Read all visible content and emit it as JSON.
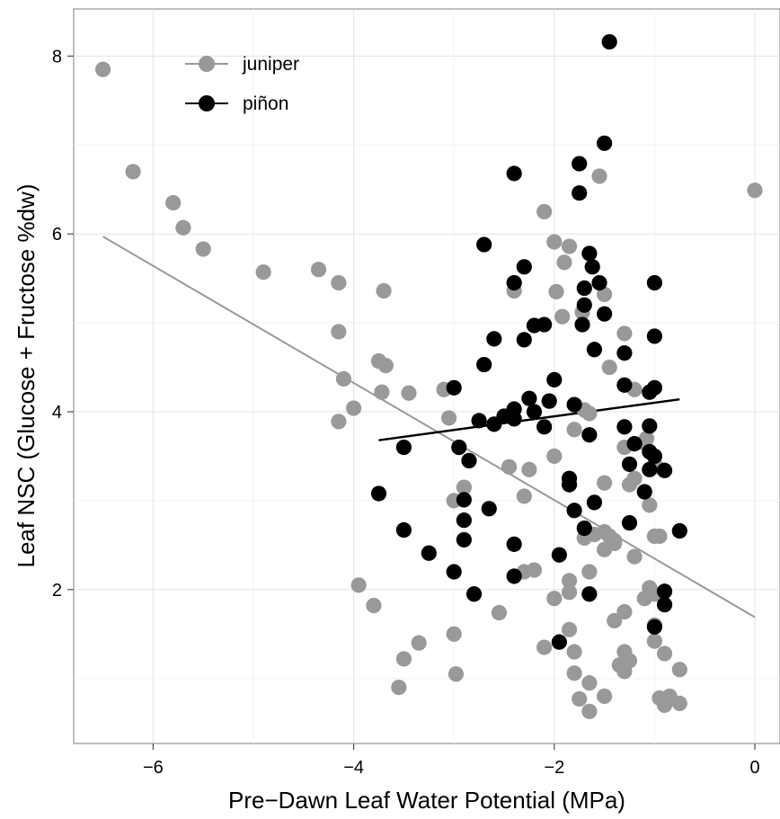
{
  "chart_data": {
    "type": "scatter",
    "title": "",
    "xlabel": "Pre−Dawn Leaf Water Potential (MPa)",
    "ylabel": "Leaf NSC (Glucose + Fructose %dw)",
    "xlim": [
      -6.8,
      0.3
    ],
    "ylim": [
      0.3,
      8.6
    ],
    "x_ticks": [
      -6,
      -4,
      -2,
      0
    ],
    "x_tick_labels": [
      "−6",
      "−4",
      "−2",
      "0"
    ],
    "y_ticks": [
      2,
      4,
      6,
      8
    ],
    "y_tick_labels": [
      "2",
      "4",
      "6",
      "8"
    ],
    "grid": true,
    "legend_position": "top-left",
    "series": [
      {
        "name": "juniper",
        "color": "#999999",
        "points": [
          [
            -6.5,
            7.85
          ],
          [
            -6.2,
            6.7
          ],
          [
            -5.8,
            6.35
          ],
          [
            -5.7,
            6.07
          ],
          [
            -5.5,
            5.83
          ],
          [
            -4.9,
            5.57
          ],
          [
            -4.35,
            5.6
          ],
          [
            -4.15,
            5.45
          ],
          [
            -3.7,
            5.36
          ],
          [
            -4.15,
            4.9
          ],
          [
            -3.75,
            4.57
          ],
          [
            -3.68,
            4.52
          ],
          [
            -4.1,
            4.37
          ],
          [
            -3.72,
            4.22
          ],
          [
            -3.45,
            4.21
          ],
          [
            -3.1,
            4.25
          ],
          [
            -4.0,
            4.04
          ],
          [
            -4.15,
            3.89
          ],
          [
            -3.05,
            3.93
          ],
          [
            -2.95,
            3.6
          ],
          [
            -2.85,
            3.45
          ],
          [
            -2.45,
            3.38
          ],
          [
            -2.25,
            3.35
          ],
          [
            -2.9,
            3.15
          ],
          [
            -3.0,
            3.0
          ],
          [
            -2.3,
            3.05
          ],
          [
            -3.95,
            2.05
          ],
          [
            -3.8,
            1.82
          ],
          [
            -3.35,
            1.4
          ],
          [
            -3.5,
            1.22
          ],
          [
            -3.55,
            0.9
          ],
          [
            -3.0,
            1.5
          ],
          [
            -2.98,
            1.05
          ],
          [
            -2.55,
            1.74
          ],
          [
            -2.3,
            2.2
          ],
          [
            -2.2,
            2.22
          ],
          [
            -2.1,
            1.35
          ],
          [
            -2.0,
            1.9
          ],
          [
            -2.1,
            6.25
          ],
          [
            -2.0,
            5.91
          ],
          [
            -1.85,
            5.86
          ],
          [
            -1.9,
            5.68
          ],
          [
            -1.98,
            5.35
          ],
          [
            -1.92,
            5.07
          ],
          [
            -1.55,
            6.65
          ],
          [
            -1.5,
            5.32
          ],
          [
            -1.72,
            5.12
          ],
          [
            -2.4,
            5.36
          ],
          [
            -1.45,
            4.5
          ],
          [
            -1.3,
            4.88
          ],
          [
            -1.2,
            4.25
          ],
          [
            -1.7,
            4.02
          ],
          [
            -1.65,
            3.98
          ],
          [
            -1.8,
            3.8
          ],
          [
            -2.0,
            3.5
          ],
          [
            -1.3,
            3.6
          ],
          [
            -1.2,
            3.25
          ],
          [
            -1.1,
            3.65
          ],
          [
            -1.08,
            3.7
          ],
          [
            -1.0,
            3.4
          ],
          [
            -0.98,
            3.38
          ],
          [
            -1.5,
            3.2
          ],
          [
            -1.25,
            3.18
          ],
          [
            -1.05,
            2.95
          ],
          [
            -1.5,
            2.65
          ],
          [
            -1.45,
            2.6
          ],
          [
            -1.4,
            2.55
          ],
          [
            -1.6,
            2.62
          ],
          [
            -1.5,
            2.45
          ],
          [
            -1.7,
            2.58
          ],
          [
            -1.4,
            2.52
          ],
          [
            -1.2,
            2.37
          ],
          [
            -1.0,
            2.6
          ],
          [
            -0.95,
            2.6
          ],
          [
            -1.85,
            2.1
          ],
          [
            -1.65,
            2.2
          ],
          [
            -1.05,
            2.02
          ],
          [
            -1.1,
            1.9
          ],
          [
            -1.0,
            1.95
          ],
          [
            -1.85,
            1.97
          ],
          [
            -1.0,
            1.6
          ],
          [
            -1.4,
            1.65
          ],
          [
            -1.3,
            1.75
          ],
          [
            -1.85,
            1.55
          ],
          [
            -1.8,
            1.3
          ],
          [
            -1.3,
            1.3
          ],
          [
            -1.25,
            1.2
          ],
          [
            -1.35,
            1.15
          ],
          [
            -1.3,
            1.08
          ],
          [
            -1.8,
            1.06
          ],
          [
            -1.65,
            0.95
          ],
          [
            -1.75,
            0.77
          ],
          [
            -1.65,
            0.63
          ],
          [
            -1.5,
            0.8
          ],
          [
            -1.0,
            1.42
          ],
          [
            -0.9,
            1.28
          ],
          [
            -0.75,
            1.1
          ],
          [
            -0.95,
            0.78
          ],
          [
            -0.85,
            0.8
          ],
          [
            -0.9,
            0.7
          ],
          [
            -0.75,
            0.72
          ],
          [
            0.0,
            6.49
          ]
        ],
        "fit_line": [
          [
            -6.5,
            5.97
          ],
          [
            0.0,
            1.69
          ]
        ]
      },
      {
        "name": "piñon",
        "color": "#000000",
        "points": [
          [
            -1.45,
            8.16
          ],
          [
            -1.5,
            7.02
          ],
          [
            -2.4,
            6.68
          ],
          [
            -1.75,
            6.79
          ],
          [
            -1.75,
            6.46
          ],
          [
            -2.7,
            5.88
          ],
          [
            -1.65,
            5.78
          ],
          [
            -1.62,
            5.63
          ],
          [
            -2.3,
            5.63
          ],
          [
            -2.4,
            5.45
          ],
          [
            -1.55,
            5.45
          ],
          [
            -1.7,
            5.39
          ],
          [
            -1.0,
            5.45
          ],
          [
            -1.7,
            5.2
          ],
          [
            -1.5,
            5.1
          ],
          [
            -2.2,
            4.97
          ],
          [
            -2.1,
            4.98
          ],
          [
            -1.72,
            4.98
          ],
          [
            -2.6,
            4.82
          ],
          [
            -2.3,
            4.81
          ],
          [
            -1.6,
            4.7
          ],
          [
            -1.3,
            4.66
          ],
          [
            -1.0,
            4.85
          ],
          [
            -2.7,
            4.53
          ],
          [
            -2.0,
            4.36
          ],
          [
            -1.3,
            4.3
          ],
          [
            -1.05,
            4.22
          ],
          [
            -1.0,
            4.27
          ],
          [
            -3.0,
            4.27
          ],
          [
            -2.25,
            4.15
          ],
          [
            -2.05,
            4.12
          ],
          [
            -1.8,
            4.08
          ],
          [
            -2.4,
            4.03
          ],
          [
            -2.2,
            4.0
          ],
          [
            -2.5,
            3.95
          ],
          [
            -2.4,
            3.92
          ],
          [
            -2.75,
            3.9
          ],
          [
            -2.6,
            3.86
          ],
          [
            -2.1,
            3.83
          ],
          [
            -1.3,
            3.83
          ],
          [
            -1.05,
            3.84
          ],
          [
            -1.65,
            3.74
          ],
          [
            -1.2,
            3.64
          ],
          [
            -3.5,
            3.6
          ],
          [
            -2.95,
            3.6
          ],
          [
            -1.05,
            3.55
          ],
          [
            -1.0,
            3.5
          ],
          [
            -2.85,
            3.45
          ],
          [
            -1.25,
            3.41
          ],
          [
            -1.05,
            3.35
          ],
          [
            -0.9,
            3.34
          ],
          [
            -1.85,
            3.25
          ],
          [
            -1.85,
            3.18
          ],
          [
            -1.1,
            3.1
          ],
          [
            -3.75,
            3.08
          ],
          [
            -2.9,
            3.01
          ],
          [
            -1.6,
            2.98
          ],
          [
            -2.65,
            2.91
          ],
          [
            -1.8,
            2.89
          ],
          [
            -1.25,
            2.75
          ],
          [
            -1.7,
            2.69
          ],
          [
            -2.9,
            2.78
          ],
          [
            -0.75,
            2.66
          ],
          [
            -3.5,
            2.67
          ],
          [
            -2.9,
            2.56
          ],
          [
            -2.4,
            2.51
          ],
          [
            -3.25,
            2.41
          ],
          [
            -1.95,
            2.39
          ],
          [
            -3.0,
            2.2
          ],
          [
            -2.4,
            2.15
          ],
          [
            -2.8,
            1.95
          ],
          [
            -1.65,
            1.95
          ],
          [
            -0.9,
            1.98
          ],
          [
            -0.9,
            1.83
          ],
          [
            -1.0,
            1.58
          ],
          [
            -1.95,
            1.41
          ]
        ],
        "fit_line": [
          [
            -3.75,
            3.68
          ],
          [
            -0.75,
            4.14
          ]
        ]
      }
    ]
  }
}
